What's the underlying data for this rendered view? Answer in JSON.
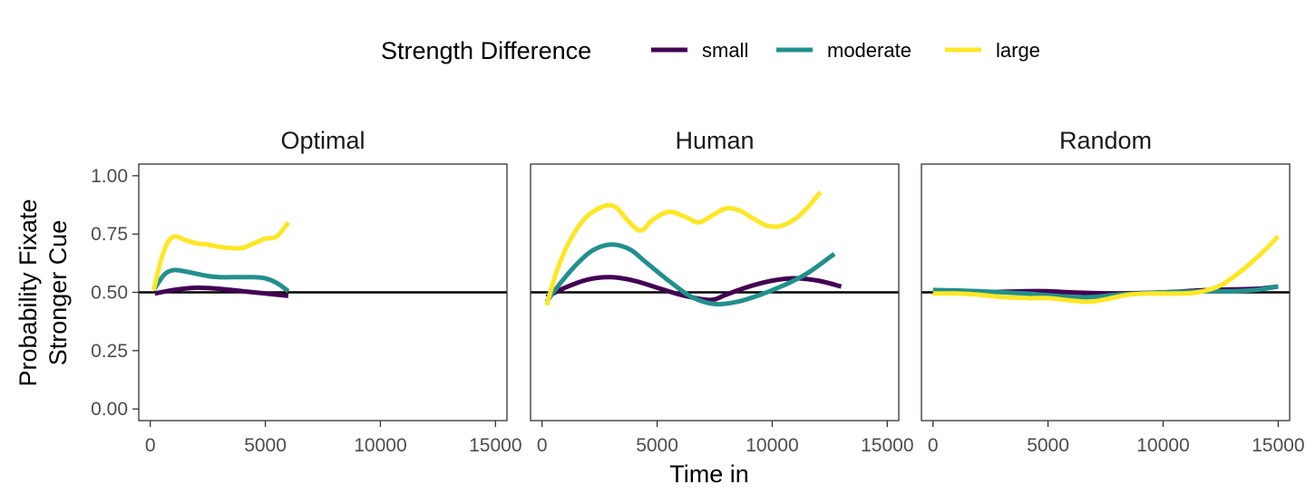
{
  "chart_data": {
    "type": "line",
    "legend": {
      "title": "Strength Difference",
      "position": "top"
    },
    "xlabel": "Time in",
    "ylabel_lines": [
      "Probability Fixate",
      "Stronger Cue"
    ],
    "xlim": [
      -500,
      15500
    ],
    "ylim": [
      -0.05,
      1.05
    ],
    "x_ticks": [
      0,
      5000,
      10000,
      15000
    ],
    "x_tick_labels": [
      "0",
      "5000",
      "10000",
      "15000"
    ],
    "y_ticks": [
      0,
      0.25,
      0.5,
      0.75,
      1
    ],
    "y_tick_labels": [
      "0.00",
      "0.25",
      "0.50",
      "0.75",
      "1.00"
    ],
    "reference_line": 0.5,
    "grid": false,
    "series_styles": [
      {
        "name": "small",
        "color": "#440154"
      },
      {
        "name": "moderate",
        "color": "#21908C"
      },
      {
        "name": "large",
        "color": "#FDE725"
      }
    ],
    "panels": [
      {
        "title": "Optimal",
        "series": [
          {
            "name": "small",
            "x": [
              200,
              1000,
              2000,
              3000,
              4000,
              5000,
              6000
            ],
            "y": [
              0.495,
              0.51,
              0.52,
              0.515,
              0.505,
              0.495,
              0.485
            ]
          },
          {
            "name": "moderate",
            "x": [
              150,
              600,
              1000,
              1500,
              2000,
              2500,
              3000,
              3500,
              4000,
              4500,
              5000,
              5500,
              6000
            ],
            "y": [
              0.51,
              0.575,
              0.595,
              0.59,
              0.58,
              0.57,
              0.565,
              0.565,
              0.565,
              0.565,
              0.56,
              0.54,
              0.505
            ]
          },
          {
            "name": "large",
            "x": [
              150,
              500,
              800,
              1100,
              1500,
              2000,
              2500,
              3000,
              3500,
              4000,
              4500,
              5000,
              5500,
              6000
            ],
            "y": [
              0.51,
              0.65,
              0.72,
              0.74,
              0.725,
              0.71,
              0.705,
              0.695,
              0.69,
              0.69,
              0.71,
              0.73,
              0.74,
              0.8
            ]
          }
        ]
      },
      {
        "title": "Human",
        "series": [
          {
            "name": "small",
            "x": [
              200,
              1000,
              2000,
              3000,
              4000,
              5000,
              6000,
              7000,
              7500,
              8000,
              9000,
              10000,
              11000,
              12000,
              13000
            ],
            "y": [
              0.48,
              0.52,
              0.555,
              0.565,
              0.55,
              0.52,
              0.49,
              0.47,
              0.47,
              0.49,
              0.525,
              0.55,
              0.56,
              0.55,
              0.525
            ]
          },
          {
            "name": "moderate",
            "x": [
              200,
              800,
              1500,
              2200,
              3000,
              3800,
              4500,
              5500,
              6500,
              7500,
              8500,
              9500,
              10500,
              11500,
              12700
            ],
            "y": [
              0.46,
              0.54,
              0.62,
              0.68,
              0.705,
              0.685,
              0.63,
              0.55,
              0.48,
              0.45,
              0.46,
              0.49,
              0.53,
              0.58,
              0.665
            ]
          },
          {
            "name": "large",
            "x": [
              200,
              600,
              1000,
              1500,
              2000,
              2700,
              3200,
              3800,
              4300,
              4800,
              5500,
              6200,
              6800,
              7400,
              8000,
              8600,
              9200,
              9800,
              10400,
              11000,
              11500,
              12100
            ],
            "y": [
              0.445,
              0.58,
              0.68,
              0.77,
              0.83,
              0.87,
              0.865,
              0.8,
              0.765,
              0.81,
              0.845,
              0.825,
              0.8,
              0.83,
              0.86,
              0.85,
              0.815,
              0.785,
              0.785,
              0.815,
              0.86,
              0.93
            ]
          }
        ]
      },
      {
        "title": "Random",
        "series": [
          {
            "name": "small",
            "x": [
              0,
              2000,
              4000,
              5000,
              6000,
              8000,
              10000,
              12000,
              14000,
              15000
            ],
            "y": [
              0.5,
              0.5,
              0.505,
              0.505,
              0.5,
              0.495,
              0.5,
              0.51,
              0.515,
              0.525
            ]
          },
          {
            "name": "moderate",
            "x": [
              0,
              2000,
              4000,
              6000,
              7000,
              8000,
              10000,
              12000,
              13000,
              14000,
              15000
            ],
            "y": [
              0.51,
              0.505,
              0.495,
              0.48,
              0.48,
              0.49,
              0.5,
              0.505,
              0.505,
              0.51,
              0.525
            ]
          },
          {
            "name": "large",
            "x": [
              0,
              1000,
              2000,
              3000,
              4000,
              5000,
              6000,
              6800,
              7500,
              8500,
              9500,
              10500,
              11500,
              12500,
              13500,
              14300,
              15000
            ],
            "y": [
              0.495,
              0.495,
              0.49,
              0.48,
              0.475,
              0.475,
              0.465,
              0.46,
              0.47,
              0.49,
              0.495,
              0.495,
              0.5,
              0.53,
              0.6,
              0.67,
              0.74
            ]
          }
        ]
      }
    ]
  }
}
